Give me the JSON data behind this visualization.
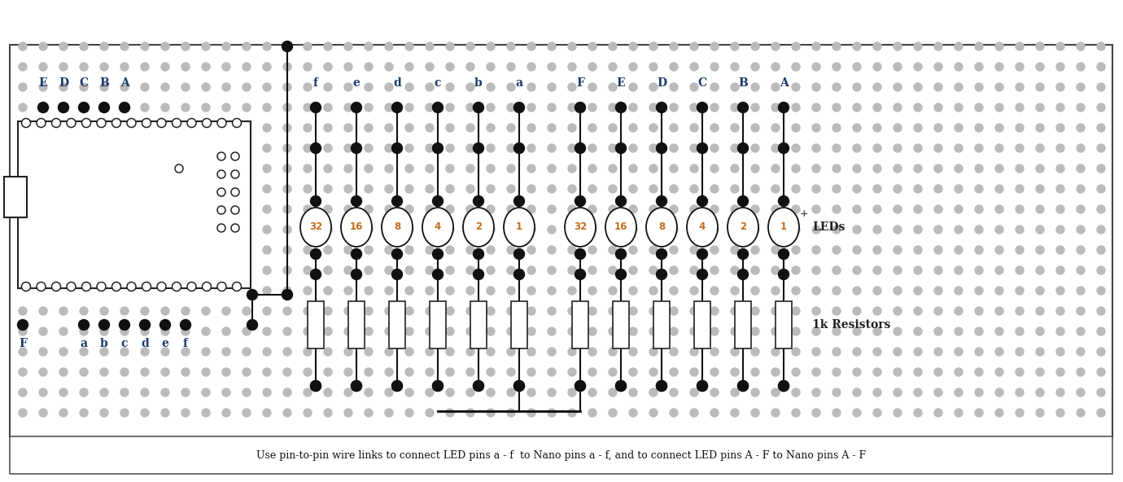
{
  "fig_width": 13.8,
  "fig_height": 5.92,
  "bg_color": "#ffffff",
  "dot_color_dark": "#111111",
  "dot_color_gray": "#bbbbbb",
  "title_text": "Use pin-to-pin wire links to connect LED pins a - f  to Nano pins a - f, and to connect LED pins A - F to Nano pins A - F",
  "labels_top_left": [
    "E",
    "D",
    "C",
    "B",
    "A"
  ],
  "labels_top_right": [
    "f",
    "e",
    "d",
    "c",
    "b",
    "a",
    "F",
    "E",
    "D",
    "C",
    "B",
    "A"
  ],
  "labels_bottom_left": [
    "F",
    "a",
    "b",
    "c",
    "d",
    "e",
    "f"
  ],
  "led_values_left": [
    "32",
    "16",
    "8",
    "4",
    "2",
    "1"
  ],
  "led_values_right": [
    "32",
    "16",
    "8",
    "4",
    "2",
    "1"
  ],
  "label_leds": "LEDs",
  "label_resistors": "1k Resistors",
  "led_outline_color": "#111111",
  "led_text_color": "#c07020",
  "wire_color": "#111111"
}
